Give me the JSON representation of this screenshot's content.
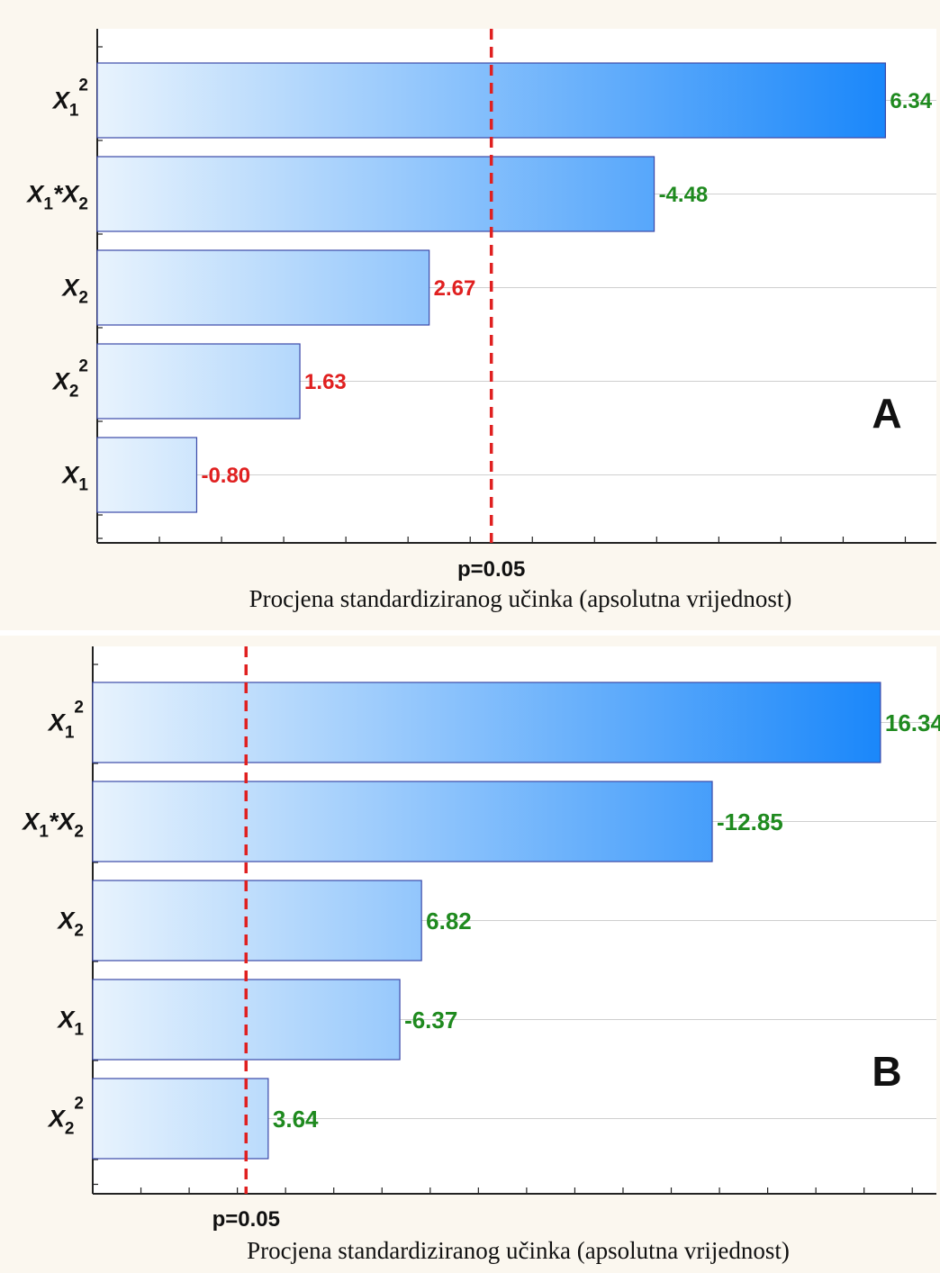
{
  "chart_data": [
    {
      "type": "bar",
      "orientation": "horizontal",
      "panel_label": "A",
      "categories": [
        "X1^2",
        "X1*X2",
        "X2",
        "X2^2",
        "X1"
      ],
      "category_labels": [
        {
          "base": "X",
          "sub": "1",
          "sup": "2"
        },
        {
          "base": "X",
          "sub": "1",
          "mid": "*X",
          "sub2": "2"
        },
        {
          "base": "X",
          "sub": "2"
        },
        {
          "base": "X",
          "sub": "2",
          "sup": "2"
        },
        {
          "base": "X",
          "sub": "1"
        }
      ],
      "values": [
        6.34,
        4.48,
        2.67,
        1.63,
        0.8
      ],
      "value_labels": [
        "6.34",
        "-4.48",
        "2.67",
        "1.63",
        "-0.80"
      ],
      "label_colors": [
        "#1f8a1f",
        "#1f8a1f",
        "#e02020",
        "#e02020",
        "#e02020"
      ],
      "significance_value": 3.17,
      "significance_label": "p=0.05",
      "xlabel": "Procjena standardiziranog učinka (apsolutna vrijednost)",
      "xlim": [
        0,
        6.75
      ],
      "x_minor_step": 0.5,
      "grid": true,
      "colors": {
        "bar_light": "#e8f3fd",
        "bar_dark": "#1a87fa",
        "significance": "#e02020",
        "significant": "#1f8a1f",
        "not_significant": "#e02020"
      }
    },
    {
      "type": "bar",
      "orientation": "horizontal",
      "panel_label": "B",
      "categories": [
        "X1^2",
        "X1*X2",
        "X2",
        "X1",
        "X2^2"
      ],
      "category_labels": [
        {
          "base": "X",
          "sub": "1",
          "sup": "2"
        },
        {
          "base": "X",
          "sub": "1",
          "mid": "*X",
          "sub2": "2"
        },
        {
          "base": "X",
          "sub": "2"
        },
        {
          "base": "X",
          "sub": "1"
        },
        {
          "base": "X",
          "sub": "2",
          "sup": "2"
        }
      ],
      "values": [
        16.34,
        12.85,
        6.82,
        6.37,
        3.64
      ],
      "value_labels": [
        "16.34",
        "-12.85",
        "6.82",
        "-6.37",
        "3.64"
      ],
      "label_colors": [
        "#1f8a1f",
        "#1f8a1f",
        "#1f8a1f",
        "#1f8a1f",
        "#1f8a1f"
      ],
      "significance_value": 3.18,
      "significance_label": "p=0.05",
      "xlabel": "Procjena standardiziranog učinka (apsolutna vrijednost)",
      "xlim": [
        0,
        17.5
      ],
      "x_minor_step": 1,
      "grid": true,
      "colors": {
        "bar_light": "#e8f3fd",
        "bar_dark": "#1a87fa",
        "significance": "#e02020",
        "significant": "#1f8a1f",
        "not_significant": "#e02020"
      }
    }
  ]
}
